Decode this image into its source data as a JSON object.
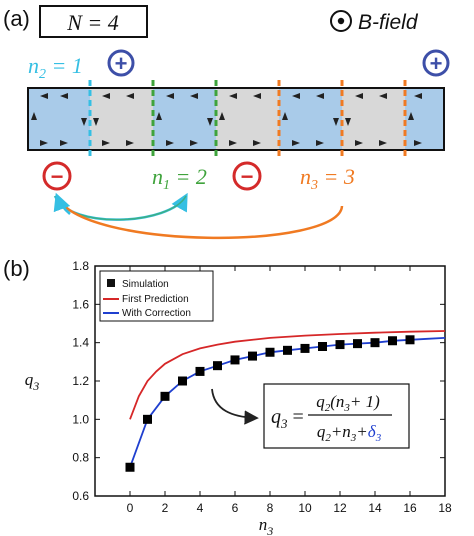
{
  "panel_a": {
    "label": "(a)",
    "n_box": "N = 4",
    "field": "B-field",
    "charges": {
      "plus": "+",
      "minus": "−"
    },
    "labels": {
      "n2": {
        "base": "n",
        "sub": "2",
        "rest": " = 1"
      },
      "n1": {
        "base": "n",
        "sub": "1",
        "rest": " = 2"
      },
      "n3": {
        "base": "n",
        "sub": "3",
        "rest": " = 3"
      }
    },
    "colors": {
      "blue_cell": "#a9cbe9",
      "gray_cell": "#d8d8d8",
      "plus": "#3d4fa8",
      "minus": "#d42a2a",
      "n2": "#35bfe3",
      "n1": "#3fa33c",
      "n3": "#f07a22"
    }
  },
  "panel_b": {
    "label": "(b)",
    "formula": {
      "lhs_base": "q",
      "lhs_sub": "3",
      "num": [
        "q",
        "2",
        "(n",
        "3",
        "+ 1)"
      ],
      "den": [
        "q",
        "2",
        "+n",
        "3",
        "+",
        "δ",
        "3"
      ]
    }
  },
  "chart_data": {
    "type": "line",
    "title": "",
    "xlabel": "n3",
    "ylabel": "q3",
    "xlim": [
      -2,
      18
    ],
    "ylim": [
      0.6,
      1.8
    ],
    "xticks": [
      0,
      2,
      4,
      6,
      8,
      10,
      12,
      14,
      16,
      18
    ],
    "yticks": [
      0.6,
      0.8,
      1.0,
      1.2,
      1.4,
      1.6,
      1.8
    ],
    "tick_labels_x": [
      "0",
      "2",
      "4",
      "6",
      "8",
      "10",
      "12",
      "14",
      "16",
      "18"
    ],
    "tick_labels_y": [
      "0.6",
      "0.8",
      "1.0",
      "1.2",
      "1.4",
      "1.6",
      "1.8"
    ],
    "legend_position": "top-left",
    "legend": [
      "Simulation",
      "First Prediction",
      "With Correction"
    ],
    "series": [
      {
        "name": "Simulation",
        "kind": "scatter",
        "color": "#000000",
        "x": [
          0,
          1,
          2,
          3,
          4,
          5,
          6,
          7,
          8,
          9,
          10,
          11,
          12,
          13,
          14,
          15,
          16
        ],
        "y": [
          0.75,
          1.0,
          1.12,
          1.2,
          1.25,
          1.28,
          1.31,
          1.33,
          1.35,
          1.36,
          1.37,
          1.38,
          1.39,
          1.395,
          1.4,
          1.41,
          1.415
        ]
      },
      {
        "name": "First Prediction",
        "kind": "line",
        "color": "#d62728",
        "x": [
          0,
          0.5,
          1,
          1.5,
          2,
          3,
          4,
          5,
          6,
          8,
          10,
          12,
          14,
          16,
          18
        ],
        "y": [
          1.0,
          1.12,
          1.2,
          1.25,
          1.29,
          1.34,
          1.37,
          1.39,
          1.405,
          1.425,
          1.437,
          1.445,
          1.452,
          1.457,
          1.461
        ]
      },
      {
        "name": "With Correction",
        "kind": "line",
        "color": "#1f3fcf",
        "x": [
          0,
          1,
          2,
          3,
          4,
          5,
          6,
          7,
          8,
          9,
          10,
          11,
          12,
          13,
          14,
          15,
          16,
          17,
          18
        ],
        "y": [
          0.75,
          1.0,
          1.12,
          1.2,
          1.25,
          1.28,
          1.31,
          1.33,
          1.35,
          1.36,
          1.37,
          1.38,
          1.39,
          1.395,
          1.4,
          1.41,
          1.415,
          1.42,
          1.425
        ]
      }
    ]
  }
}
